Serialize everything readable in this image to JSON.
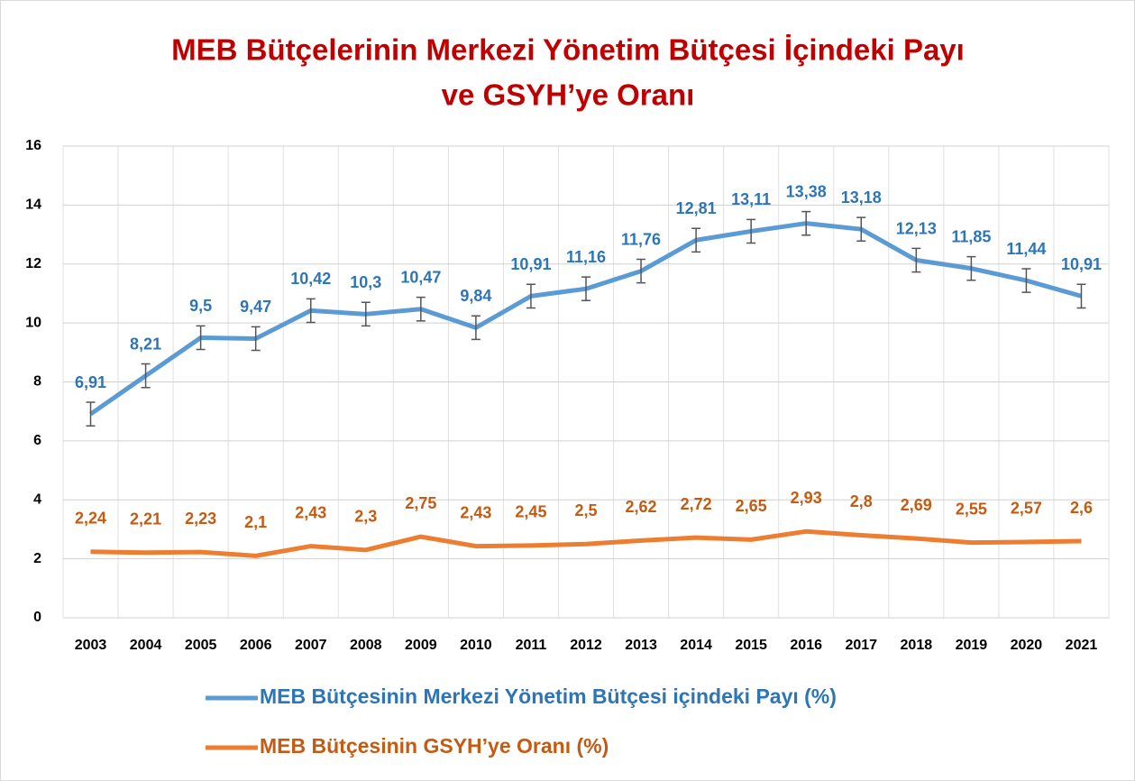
{
  "chart_data": {
    "type": "line",
    "title": [
      "MEB Bütçelerinin Merkezi Yönetim Bütçesi İçindeki Payı",
      "ve GSYH’ye Oranı"
    ],
    "categories": [
      "2003",
      "2004",
      "2005",
      "2006",
      "2007",
      "2008",
      "2009",
      "2010",
      "2011",
      "2012",
      "2013",
      "2014",
      "2015",
      "2016",
      "2017",
      "2018",
      "2019",
      "2020",
      "2021"
    ],
    "series": [
      {
        "name": "MEB Bütçesinin Merkezi Yönetim Bütçesi içindeki Payı (%)",
        "color": "#5b9bd5",
        "values": [
          6.91,
          8.21,
          9.5,
          9.47,
          10.42,
          10.3,
          10.47,
          9.84,
          10.91,
          11.16,
          11.76,
          12.81,
          13.11,
          13.38,
          13.18,
          12.13,
          11.85,
          11.44,
          10.91
        ],
        "value_labels": [
          "6,91",
          "8,21",
          "9,5",
          "9,47",
          "10,42",
          "10,3",
          "10,47",
          "9,84",
          "10,91",
          "11,16",
          "11,76",
          "12,81",
          "13,11",
          "13,38",
          "13,18",
          "12,13",
          "11,85",
          "11,44",
          "10,91"
        ],
        "errors": [
          0.4,
          0.4,
          0.4,
          0.4,
          0.4,
          0.4,
          0.4,
          0.4,
          0.4,
          0.4,
          0.4,
          0.4,
          0.4,
          0.4,
          0.4,
          0.4,
          0.4,
          0.4,
          0.4
        ]
      },
      {
        "name": "MEB Bütçesinin GSYH’ye Oranı (%)",
        "color": "#ed7d31",
        "values": [
          2.24,
          2.21,
          2.23,
          2.1,
          2.43,
          2.3,
          2.75,
          2.43,
          2.45,
          2.5,
          2.62,
          2.72,
          2.65,
          2.93,
          2.8,
          2.69,
          2.55,
          2.57,
          2.6
        ],
        "value_labels": [
          "2,24",
          "2,21",
          "2,23",
          "2,1",
          "2,43",
          "2,3",
          "2,75",
          "2,43",
          "2,45",
          "2,5",
          "2,62",
          "2,72",
          "2,65",
          "2,93",
          "2,8",
          "2,69",
          "2,55",
          "2,57",
          "2,6"
        ]
      }
    ],
    "ylim": [
      0,
      16
    ],
    "yticks": [
      0,
      2,
      4,
      6,
      8,
      10,
      12,
      14,
      16
    ],
    "grid": true,
    "legend": "bottom"
  }
}
